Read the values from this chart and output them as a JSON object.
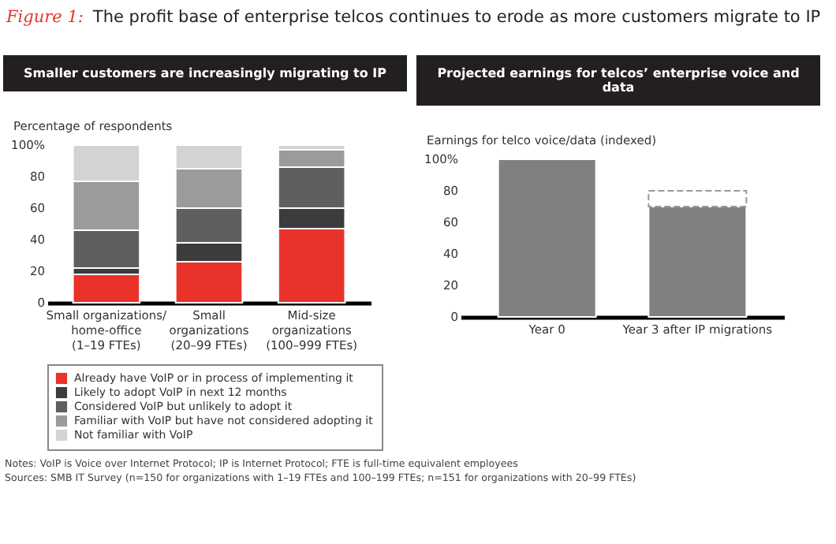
{
  "chart_data": [
    {
      "type": "bar",
      "stacked": true,
      "title": "Smaller customers are increasingly migrating to IP",
      "ylabel": "Percentage of respondents",
      "categories": [
        "Small organizations/\nhome-office\n(1–19 FTEs)",
        "Small\norganizations\n(20–99 FTEs)",
        "Mid-size\norganizations\n(100–999 FTEs)"
      ],
      "series": [
        {
          "name": "Already have VoIP or in process of implementing it",
          "color": "#e8322a",
          "values": [
            18,
            26,
            47
          ]
        },
        {
          "name": "Likely to adopt VoIP in next 12 months",
          "color": "#3c3c3c",
          "values": [
            4,
            12,
            13
          ]
        },
        {
          "name": "Considered VoIP but unlikely to adopt it",
          "color": "#5f5f5f",
          "values": [
            24,
            22,
            26
          ]
        },
        {
          "name": "Familiar with VoIP but have not considered adopting it",
          "color": "#9b9b9b",
          "values": [
            31,
            25,
            11
          ]
        },
        {
          "name": "Not familiar with VoIP",
          "color": "#d3d3d3",
          "values": [
            23,
            15,
            3
          ]
        }
      ],
      "ylim": [
        0,
        100
      ],
      "yticks": [
        0,
        20,
        40,
        60,
        80,
        {
          "value": 100,
          "label": "100%"
        }
      ],
      "grid": false,
      "legend": "bottom",
      "annotations": [
        "Figure 1:",
        "The profit base of enterprise telcos continues to erode as more customers migrate to IP",
        "Notes: VoIP is Voice over Internet Protocol; IP is Internet Protocol; FTE is full-time equivalent employees",
        "Sources: SMB IT Survey (n=150 for organizations with 1–19 FTEs and 100–199 FTEs; n=151 for organizations with 20–99 FTEs)"
      ]
    },
    {
      "type": "bar",
      "stacked": true,
      "title": "Projected earnings for telcos’ enterprise voice and data",
      "ylabel": "Earnings for telco voice/data (indexed)",
      "categories": [
        "Year 0",
        "Year 3 after IP migrations"
      ],
      "series": [
        {
          "color": "#808082",
          "values": [
            100,
            70
          ]
        },
        {
          "color": "#9a9a9a",
          "values": [
            null,
            10
          ],
          "line_style": "dashed"
        }
      ],
      "ylim": [
        0,
        100
      ],
      "yticks": [
        0,
        20,
        40,
        60,
        80,
        {
          "value": 100,
          "label": "100%"
        }
      ],
      "grid": false,
      "legend": false
    }
  ]
}
